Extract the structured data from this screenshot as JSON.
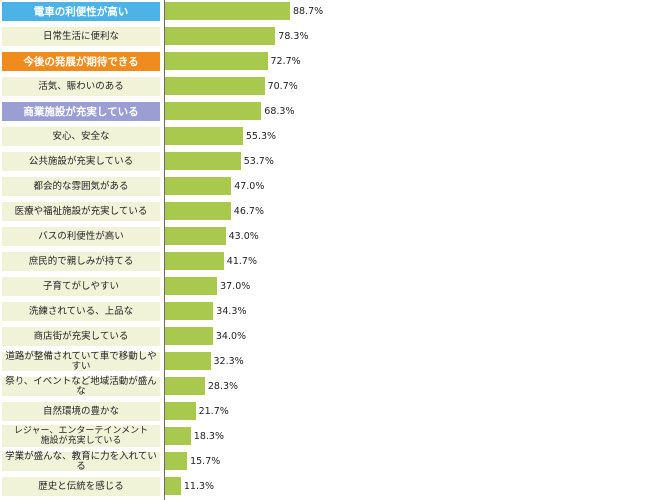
{
  "chart_data": {
    "type": "bar",
    "orientation": "horizontal",
    "categories": [
      "電車の利便性が高い",
      "日常生活に便利な",
      "今後の発展が期待できる",
      "活気、賑わいのある",
      "商業施設が充実している",
      "安心、安全な",
      "公共施設が充実している",
      "都会的な雰囲気がある",
      "医療や福祉施設が充実している",
      "バスの利便性が高い",
      "庶民的で親しみが持てる",
      "子育てがしやすい",
      "洗練されている、上品な",
      "商店街が充実している",
      "道路が整備されていて車で移動しやすい",
      "祭り、イベントなど地域活動が盛んな",
      "自然環境の豊かな",
      "レジャー、エンターテインメント\n施設が充実している",
      "学業が盛んな、教育に力を入れている",
      "歴史と伝統を感じる"
    ],
    "values": [
      88.7,
      78.3,
      72.7,
      70.7,
      68.3,
      55.3,
      53.7,
      47.0,
      46.7,
      43.0,
      41.7,
      37.0,
      34.3,
      34.0,
      32.3,
      28.3,
      21.7,
      18.3,
      15.7,
      11.3
    ],
    "value_labels": [
      "88.7%",
      "78.3%",
      "72.7%",
      "70.7%",
      "68.3%",
      "55.3%",
      "53.7%",
      "47.0%",
      "46.7%",
      "43.0%",
      "41.7%",
      "37.0%",
      "34.3%",
      "34.0%",
      "32.3%",
      "28.3%",
      "21.7%",
      "18.3%",
      "15.7%",
      "11.3%"
    ],
    "highlights": [
      {
        "index": 0,
        "color": "#4db3e6"
      },
      {
        "index": 2,
        "color": "#f08c1e"
      },
      {
        "index": 4,
        "color": "#9a9ed2"
      }
    ],
    "bar_color": "#a8c94d",
    "label_bg_color": "#f1f3d9",
    "xlim": [
      0,
      100
    ],
    "grid": false,
    "title": "",
    "xlabel": "",
    "ylabel": ""
  }
}
